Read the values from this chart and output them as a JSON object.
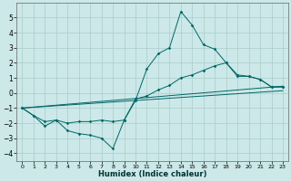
{
  "xlabel": "Humidex (Indice chaleur)",
  "bg_color": "#cce8e8",
  "grid_color": "#aacccc",
  "line_color": "#006666",
  "xlim": [
    -0.5,
    23.5
  ],
  "ylim": [
    -4.5,
    6.0
  ],
  "yticks": [
    -4,
    -3,
    -2,
    -1,
    0,
    1,
    2,
    3,
    4,
    5
  ],
  "xticks": [
    0,
    1,
    2,
    3,
    4,
    5,
    6,
    7,
    8,
    9,
    10,
    11,
    12,
    13,
    14,
    15,
    16,
    17,
    18,
    19,
    20,
    21,
    22,
    23
  ],
  "line_zigzag": {
    "x": [
      0,
      1,
      2,
      3,
      4,
      5,
      6,
      7,
      8,
      9,
      10,
      11,
      12,
      13,
      14,
      15,
      16,
      17,
      18,
      19,
      20,
      21,
      22,
      23
    ],
    "y": [
      -1.0,
      -1.5,
      -2.2,
      -1.8,
      -2.5,
      -2.7,
      -2.8,
      -3.0,
      -3.7,
      -1.8,
      -0.5,
      1.6,
      2.6,
      3.0,
      5.4,
      4.5,
      3.2,
      2.9,
      2.0,
      1.1,
      1.1,
      0.9,
      0.4,
      0.4
    ]
  },
  "line_smooth": {
    "x": [
      0,
      1,
      2,
      3,
      4,
      5,
      6,
      7,
      8,
      9,
      10,
      11,
      12,
      13,
      14,
      15,
      16,
      17,
      18,
      19,
      20,
      21,
      22,
      23
    ],
    "y": [
      -1.0,
      -1.5,
      -1.9,
      -1.8,
      -2.0,
      -1.9,
      -1.9,
      -1.8,
      -1.9,
      -1.8,
      -0.4,
      -0.2,
      0.2,
      0.5,
      1.0,
      1.2,
      1.5,
      1.8,
      2.0,
      1.2,
      1.1,
      0.9,
      0.4,
      0.4
    ]
  },
  "line_trend1": {
    "x": [
      0,
      23
    ],
    "y": [
      -1.0,
      0.45
    ]
  },
  "line_trend2": {
    "x": [
      0,
      23
    ],
    "y": [
      -1.0,
      0.15
    ]
  }
}
